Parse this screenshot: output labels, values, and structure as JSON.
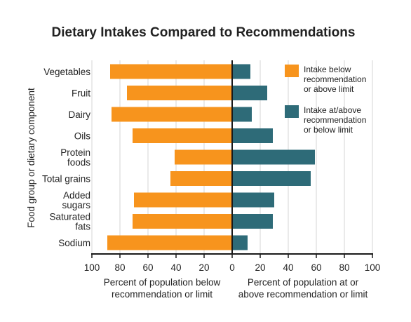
{
  "chart_data": {
    "type": "bar",
    "title": "Dietary Intakes Compared to Recommendations",
    "ylabel": "Food group or dietary component",
    "xlabel_left": [
      "Percent of population below",
      "recommendation or limit"
    ],
    "xlabel_right": [
      "Percent of population at or",
      "above recommendation or limit"
    ],
    "xticks_left": [
      "100",
      "80",
      "60",
      "40",
      "20"
    ],
    "xticks_right": [
      "0",
      "20",
      "40",
      "60",
      "80",
      "100"
    ],
    "xlim": [
      -100,
      100
    ],
    "grid": true,
    "legend_position": "top-right",
    "categories": [
      [
        "Vegetables"
      ],
      [
        "Fruit"
      ],
      [
        "Dairy"
      ],
      [
        "Oils"
      ],
      [
        "Protein",
        "foods"
      ],
      [
        "Total grains"
      ],
      [
        "Added",
        "sugars"
      ],
      [
        "Saturated",
        "fats"
      ],
      [
        "Sodium"
      ]
    ],
    "series": [
      {
        "name": [
          "Intake below",
          "recommendation",
          "or above limit"
        ],
        "color": "#f7941d",
        "values": [
          87,
          75,
          86,
          71,
          41,
          44,
          70,
          71,
          89
        ]
      },
      {
        "name": [
          "Intake at/above",
          "recommendation",
          "or below limit"
        ],
        "color": "#2e6b78",
        "values": [
          13,
          25,
          14,
          29,
          59,
          56,
          30,
          29,
          11
        ]
      }
    ]
  }
}
